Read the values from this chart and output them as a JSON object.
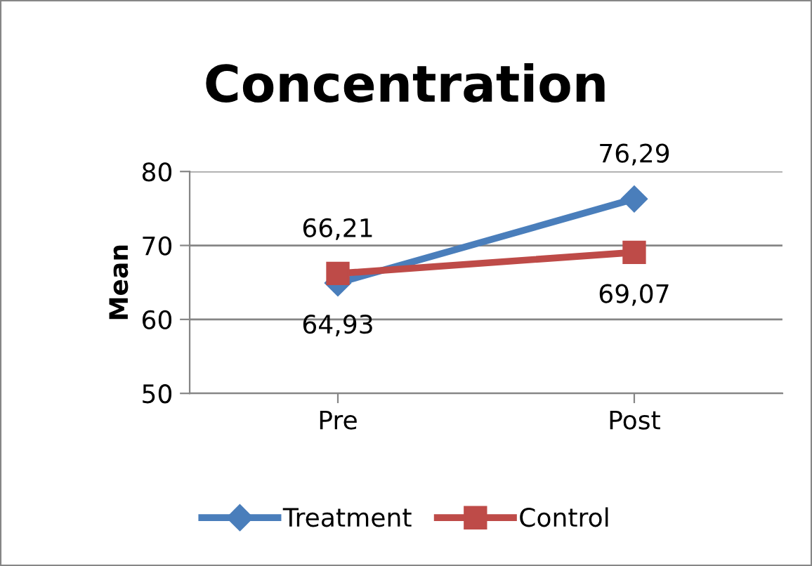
{
  "chart_data": {
    "type": "line",
    "title": "Concentration",
    "ylabel": "Mean",
    "categories": [
      "Pre",
      "Post"
    ],
    "series": [
      {
        "name": "Treatment",
        "color": "#4a7ebb",
        "marker": "diamond",
        "values": [
          64.93,
          76.29
        ],
        "value_labels": [
          "64,93",
          "76,29"
        ]
      },
      {
        "name": "Control",
        "color": "#be4b48",
        "marker": "square",
        "values": [
          66.21,
          69.07
        ],
        "value_labels": [
          "66,21",
          "69,07"
        ]
      }
    ],
    "ylim": [
      50,
      80
    ],
    "yticks": [
      50,
      60,
      70,
      80
    ],
    "grid": "y",
    "legend": "bottom",
    "line_style": "solid"
  }
}
